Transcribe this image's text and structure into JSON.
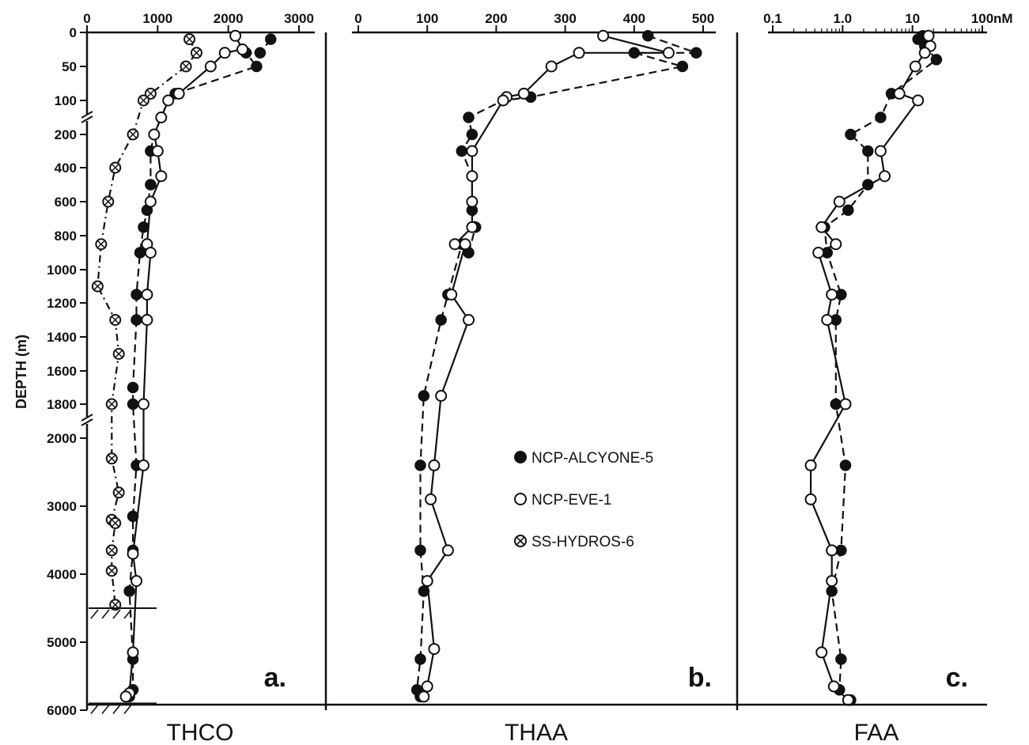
{
  "chart_data": [
    {
      "type": "line",
      "panel_label": "a.",
      "title": "THCO",
      "ylabel": "DEPTH (m)",
      "x_ticks": [
        "0",
        "1000",
        "2000",
        "3000"
      ],
      "xlim": [
        0,
        3000
      ],
      "y_ticks": [
        "0",
        "50",
        "100",
        "200",
        "400",
        "600",
        "800",
        "1000",
        "1200",
        "1400",
        "1600",
        "1800",
        "2000",
        "3000",
        "4000",
        "5000",
        "6000"
      ],
      "seafloor_depths": [
        4500,
        5900
      ],
      "series": [
        {
          "name": "NCP-ALCYONE-5",
          "marker": "filled",
          "line": "dashed",
          "points": [
            [
              2600,
              10
            ],
            [
              2450,
              30
            ],
            [
              2250,
              30
            ],
            [
              2400,
              50
            ],
            [
              1250,
              90
            ],
            [
              1150,
              100
            ],
            [
              1050,
              150
            ],
            [
              950,
              200
            ],
            [
              900,
              300
            ],
            [
              900,
              500
            ],
            [
              850,
              650
            ],
            [
              800,
              750
            ],
            [
              750,
              900
            ],
            [
              700,
              1150
            ],
            [
              700,
              1300
            ],
            [
              650,
              1700
            ],
            [
              650,
              1800
            ],
            [
              700,
              2400
            ],
            [
              650,
              3150
            ],
            [
              650,
              3650
            ],
            [
              600,
              4250
            ],
            [
              650,
              5250
            ],
            [
              650,
              5700
            ],
            [
              600,
              5800
            ]
          ]
        },
        {
          "name": "NCP-EVE-1",
          "marker": "open",
          "line": "solid",
          "points": [
            [
              2100,
              5
            ],
            [
              2200,
              25
            ],
            [
              1950,
              30
            ],
            [
              1750,
              50
            ],
            [
              1300,
              90
            ],
            [
              1150,
              100
            ],
            [
              1050,
              150
            ],
            [
              950,
              200
            ],
            [
              1000,
              300
            ],
            [
              1050,
              450
            ],
            [
              900,
              600
            ],
            [
              850,
              850
            ],
            [
              900,
              900
            ],
            [
              850,
              1150
            ],
            [
              850,
              1300
            ],
            [
              800,
              1800
            ],
            [
              800,
              2400
            ],
            [
              650,
              3700
            ],
            [
              700,
              4100
            ],
            [
              650,
              5150
            ],
            [
              600,
              5750
            ],
            [
              550,
              5800
            ]
          ]
        },
        {
          "name": "SS-HYDROS-6",
          "marker": "crossed",
          "line": "dashdot",
          "points": [
            [
              1450,
              10
            ],
            [
              1550,
              30
            ],
            [
              1400,
              50
            ],
            [
              900,
              90
            ],
            [
              800,
              100
            ],
            [
              650,
              200
            ],
            [
              400,
              400
            ],
            [
              300,
              600
            ],
            [
              200,
              850
            ],
            [
              150,
              1100
            ],
            [
              400,
              1300
            ],
            [
              450,
              1500
            ],
            [
              350,
              1800
            ],
            [
              350,
              2300
            ],
            [
              450,
              2800
            ],
            [
              350,
              3200
            ],
            [
              400,
              3250
            ],
            [
              350,
              3650
            ],
            [
              350,
              3950
            ],
            [
              400,
              4450
            ]
          ]
        }
      ]
    },
    {
      "type": "line",
      "panel_label": "b.",
      "title": "THAA",
      "x_ticks": [
        "0",
        "100",
        "200",
        "300",
        "400",
        "500"
      ],
      "xlim": [
        0,
        500
      ],
      "series": [
        {
          "name": "NCP-ALCYONE-5",
          "marker": "filled",
          "line": "dashed",
          "points": [
            [
              420,
              5
            ],
            [
              490,
              30
            ],
            [
              400,
              30
            ],
            [
              470,
              50
            ],
            [
              250,
              95
            ],
            [
              210,
              100
            ],
            [
              160,
              150
            ],
            [
              165,
              200
            ],
            [
              150,
              300
            ],
            [
              165,
              450
            ],
            [
              165,
              650
            ],
            [
              170,
              750
            ],
            [
              160,
              900
            ],
            [
              150,
              850
            ],
            [
              130,
              1150
            ],
            [
              120,
              1300
            ],
            [
              95,
              1750
            ],
            [
              90,
              2400
            ],
            [
              90,
              3650
            ],
            [
              95,
              4250
            ],
            [
              90,
              5250
            ],
            [
              85,
              5700
            ],
            [
              90,
              5800
            ]
          ]
        },
        {
          "name": "NCP-EVE-1",
          "marker": "open",
          "line": "solid",
          "points": [
            [
              355,
              5
            ],
            [
              450,
              30
            ],
            [
              320,
              30
            ],
            [
              280,
              50
            ],
            [
              240,
              90
            ],
            [
              215,
              95
            ],
            [
              210,
              100
            ],
            [
              165,
              300
            ],
            [
              165,
              450
            ],
            [
              165,
              600
            ],
            [
              165,
              750
            ],
            [
              140,
              850
            ],
            [
              155,
              850
            ],
            [
              135,
              1150
            ],
            [
              160,
              1300
            ],
            [
              120,
              1750
            ],
            [
              110,
              2400
            ],
            [
              105,
              2900
            ],
            [
              130,
              3650
            ],
            [
              100,
              4100
            ],
            [
              110,
              5100
            ],
            [
              100,
              5650
            ],
            [
              95,
              5800
            ]
          ]
        }
      ]
    },
    {
      "type": "line",
      "panel_label": "c.",
      "title": "FAA",
      "x_unit": "nM",
      "x_scale": "log",
      "x_ticks": [
        "0.1",
        "1.0",
        "10",
        "100"
      ],
      "xlim": [
        0.1,
        100
      ],
      "series": [
        {
          "name": "NCP-ALCYONE-5",
          "marker": "filled",
          "line": "dashed",
          "points": [
            [
              14,
              5
            ],
            [
              12,
              10
            ],
            [
              15,
              20
            ],
            [
              22,
              40
            ],
            [
              5,
              90
            ],
            [
              3.5,
              150
            ],
            [
              1.3,
              200
            ],
            [
              2.3,
              300
            ],
            [
              2.3,
              500
            ],
            [
              1.2,
              650
            ],
            [
              0.55,
              750
            ],
            [
              0.6,
              900
            ],
            [
              0.95,
              1150
            ],
            [
              0.8,
              1300
            ],
            [
              0.8,
              1800
            ],
            [
              1.1,
              2400
            ],
            [
              0.95,
              3650
            ],
            [
              0.7,
              4250
            ],
            [
              0.95,
              5250
            ],
            [
              0.9,
              5700
            ],
            [
              1.3,
              5850
            ]
          ]
        },
        {
          "name": "NCP-EVE-1",
          "marker": "open",
          "line": "solid",
          "points": [
            [
              17,
              5
            ],
            [
              18,
              20
            ],
            [
              15,
              30
            ],
            [
              11,
              50
            ],
            [
              6.5,
              90
            ],
            [
              12,
              100
            ],
            [
              3.5,
              300
            ],
            [
              4,
              450
            ],
            [
              0.9,
              600
            ],
            [
              0.5,
              750
            ],
            [
              0.8,
              850
            ],
            [
              0.45,
              900
            ],
            [
              0.7,
              1150
            ],
            [
              0.6,
              1300
            ],
            [
              1.1,
              1800
            ],
            [
              0.35,
              2400
            ],
            [
              0.35,
              2900
            ],
            [
              0.7,
              3650
            ],
            [
              0.7,
              4100
            ],
            [
              0.5,
              5150
            ],
            [
              0.75,
              5650
            ],
            [
              1.2,
              5850
            ]
          ]
        }
      ]
    }
  ]
}
